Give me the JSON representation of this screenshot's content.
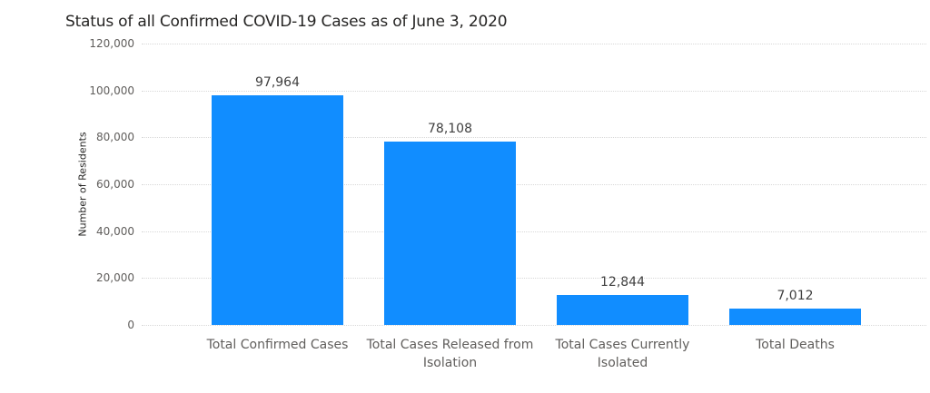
{
  "chart_data": {
    "type": "bar",
    "title": "Status of all Confirmed COVID-19 Cases as of June 3, 2020",
    "xlabel": "",
    "ylabel": "Number of Residents",
    "ylim": [
      0,
      120000
    ],
    "yticks": [
      0,
      20000,
      40000,
      60000,
      80000,
      100000,
      120000
    ],
    "ytick_labels": [
      "0",
      "20,000",
      "40,000",
      "60,000",
      "80,000",
      "100,000",
      "120,000"
    ],
    "grid": true,
    "categories": [
      "Total Confirmed Cases",
      "Total Cases Released from Isolation",
      "Total Cases Currently Isolated",
      "Total Deaths"
    ],
    "values": [
      97964,
      78108,
      12844,
      7012
    ],
    "data_labels": [
      "97,964",
      "78,108",
      "12,844",
      "7,012"
    ],
    "bar_color": "#118DFF"
  }
}
